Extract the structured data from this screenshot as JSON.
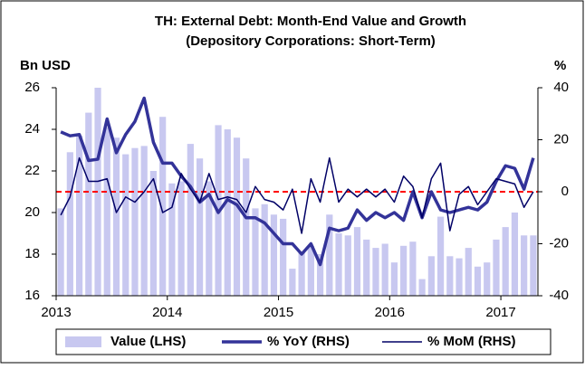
{
  "chart_data": {
    "type": "bar_line",
    "title": "TH: External Debt: Month-End Value and Growth",
    "subtitle": "(Depository Corporations: Short-Term)",
    "y_label": "Bn USD",
    "y2_label": "%",
    "categories": [
      "2013",
      null,
      null,
      null,
      null,
      null,
      null,
      null,
      null,
      null,
      null,
      null,
      "2014",
      null,
      null,
      null,
      null,
      null,
      null,
      null,
      null,
      null,
      null,
      null,
      "2015",
      null,
      null,
      null,
      null,
      null,
      null,
      null,
      null,
      null,
      null,
      null,
      "2016",
      null,
      null,
      null,
      null,
      null,
      null,
      null,
      null,
      null,
      null,
      null,
      "2017",
      null,
      null,
      null
    ],
    "series": [
      {
        "name": "Value (LHS)",
        "type": "bar",
        "color": "#c8c8f0",
        "values": [
          20.2,
          22.9,
          23.7,
          24.8,
          26.0,
          24.1,
          23.6,
          22.8,
          23.1,
          23.2,
          22.0,
          24.6,
          21.4,
          21.5,
          23.3,
          22.6,
          21.5,
          24.2,
          24.0,
          23.6,
          22.6,
          20.2,
          20.4,
          19.9,
          19.7,
          17.3,
          18.1,
          18.4,
          18.0,
          19.9,
          19.0,
          18.9,
          19.3,
          18.7,
          18.3,
          18.5,
          17.6,
          18.4,
          18.6,
          16.8,
          17.9,
          19.8,
          17.9,
          17.8,
          18.3,
          17.4,
          17.6,
          18.7,
          19.3,
          20.0,
          18.9,
          18.9
        ]
      },
      {
        "name": "% YoY (RHS)",
        "type": "line",
        "axis": "y2",
        "color": "#333399",
        "width": 3.5,
        "values": [
          23,
          21.5,
          22,
          12,
          12.5,
          28,
          15,
          22,
          27,
          36,
          19,
          11,
          11,
          6,
          2,
          -4,
          -1,
          -8,
          -3,
          -5,
          -10,
          -10,
          -12,
          -16,
          -20,
          -20,
          -24,
          -20,
          -28,
          -14,
          -15,
          -14,
          -7,
          -11,
          -8,
          -10,
          -8,
          -11,
          0,
          -10,
          0,
          -7,
          -8,
          -7,
          -6,
          -7,
          -4,
          4,
          10,
          9,
          1,
          13
        ]
      },
      {
        "name": "% MoM (RHS)",
        "type": "line",
        "axis": "y2",
        "color": "#000066",
        "width": 1.5,
        "values": [
          -9,
          -2,
          13,
          4,
          4,
          5,
          -8,
          -2,
          -4,
          0,
          5,
          -8,
          -6,
          7,
          1,
          -4,
          7,
          -3,
          -2,
          -3,
          -8,
          2,
          -3,
          -4,
          -7,
          1,
          -16,
          5,
          -4,
          13,
          -4,
          1,
          -2,
          1,
          -2,
          1,
          -4,
          6,
          2,
          -10,
          5,
          11,
          -15,
          -1,
          2,
          -5,
          0,
          5,
          4,
          3,
          -6,
          0
        ]
      }
    ],
    "reference_line": {
      "value": 0,
      "axis": "y2",
      "color": "#ff0000"
    },
    "ylim": [
      16,
      26
    ],
    "yticks": [
      16,
      18,
      20,
      22,
      24,
      26
    ],
    "y2lim": [
      -40,
      40
    ],
    "y2ticks": [
      -40,
      -20,
      0,
      20,
      40
    ],
    "legend": "bottom"
  }
}
